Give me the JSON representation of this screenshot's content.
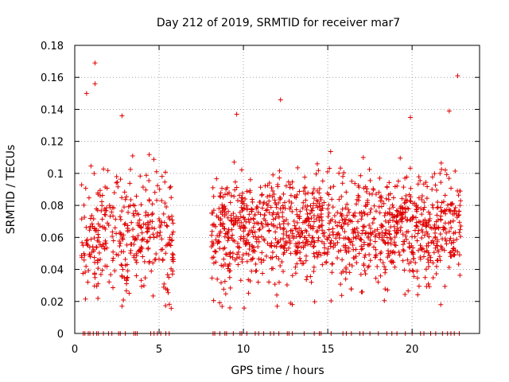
{
  "chart_data": {
    "type": "scatter",
    "title": "Day 212 of 2019, SRMTID for receiver mar7",
    "xlabel": "GPS time / hours",
    "ylabel": "SRMTID / TECUs",
    "xlim": [
      0,
      24
    ],
    "ylim": [
      0,
      0.18
    ],
    "xticks": [
      0,
      5,
      10,
      15,
      20
    ],
    "xtick_labels": [
      "0",
      "5",
      "10",
      "15",
      "20"
    ],
    "yticks": [
      0,
      0.02,
      0.04,
      0.06,
      0.08,
      0.1,
      0.12,
      0.14,
      0.16,
      0.18
    ],
    "ytick_labels": [
      "0",
      "0.02",
      "0.04",
      "0.06",
      "0.08",
      "0.1",
      "0.12",
      "0.14",
      "0.16",
      "0.18"
    ],
    "grid": true,
    "marker": "+",
    "color": "#e00000",
    "series": [
      {
        "name": "SRMTID",
        "notable_points": [
          {
            "x": 1.2,
            "y": 0.169
          },
          {
            "x": 1.2,
            "y": 0.156
          },
          {
            "x": 0.7,
            "y": 0.15
          },
          {
            "x": 22.7,
            "y": 0.161
          },
          {
            "x": 12.2,
            "y": 0.146
          },
          {
            "x": 9.6,
            "y": 0.137
          },
          {
            "x": 19.9,
            "y": 0.135
          },
          {
            "x": 2.8,
            "y": 0.136
          },
          {
            "x": 22.2,
            "y": 0.139
          },
          {
            "x": 9.2,
            "y": 0.016
          },
          {
            "x": 2.8,
            "y": 0.017
          },
          {
            "x": 12.0,
            "y": 0.017
          },
          {
            "x": 21.7,
            "y": 0.018
          }
        ],
        "segments": [
          {
            "x_range": [
              0.4,
              5.9
            ],
            "mean": 0.062,
            "spread": 0.019,
            "count": 360
          },
          {
            "x_range": [
              8.1,
              22.9
            ],
            "mean": 0.065,
            "spread": 0.017,
            "count": 1250
          }
        ],
        "zero_points_x": [
          0.5,
          0.6,
          0.8,
          0.9,
          1.1,
          1.3,
          1.4,
          1.7,
          2.0,
          2.2,
          2.6,
          2.7,
          3.0,
          3.5,
          3.6,
          3.7,
          4.5,
          4.7,
          4.9,
          5.1,
          5.4,
          5.6,
          8.2,
          8.3,
          8.6,
          8.9,
          9.0,
          9.4,
          9.8,
          9.9,
          10.2,
          10.7,
          10.9,
          11.2,
          11.6,
          11.8,
          12.1,
          12.6,
          12.7,
          12.9,
          13.6,
          14.2,
          14.5,
          14.6,
          15.2,
          15.9,
          16.1,
          16.4,
          16.9,
          17.1,
          17.5,
          18.0,
          18.5,
          18.8,
          19.1,
          19.6,
          20.0,
          20.5,
          20.7,
          21.1,
          21.4,
          21.8,
          22.1,
          22.3,
          22.5,
          22.8
        ]
      }
    ]
  }
}
